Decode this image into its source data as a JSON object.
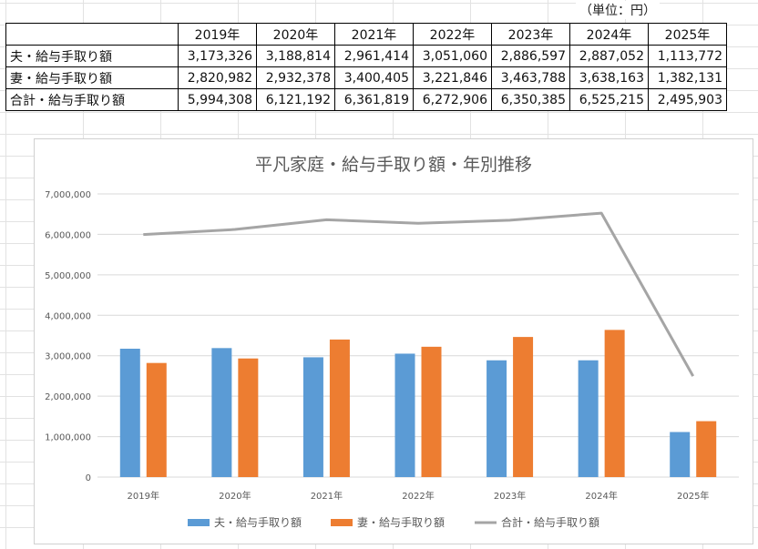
{
  "sheet": {
    "unit_label": "（単位：円）"
  },
  "table": {
    "years": [
      "2019年",
      "2020年",
      "2021年",
      "2022年",
      "2023年",
      "2024年",
      "2025年"
    ],
    "rows": [
      {
        "label": "夫・給与手取り額",
        "values": [
          "3,173,326",
          "3,188,814",
          "2,961,414",
          "3,051,060",
          "2,886,597",
          "2,887,052",
          "1,113,772"
        ]
      },
      {
        "label": "妻・給与手取り額",
        "values": [
          "2,820,982",
          "2,932,378",
          "3,400,405",
          "3,221,846",
          "3,463,788",
          "3,638,163",
          "1,382,131"
        ]
      },
      {
        "label": "合計・給与手取り額",
        "values": [
          "5,994,308",
          "6,121,192",
          "6,361,819",
          "6,272,906",
          "6,350,385",
          "6,525,215",
          "2,495,903"
        ]
      }
    ]
  },
  "chart_data": {
    "type": "bar",
    "title": "平凡家庭・給与手取り額・年別推移",
    "categories": [
      "2019年",
      "2020年",
      "2021年",
      "2022年",
      "2023年",
      "2024年",
      "2025年"
    ],
    "series": [
      {
        "name": "夫・給与手取り額",
        "kind": "bar",
        "color": "#5b9bd5",
        "values": [
          3173326,
          3188814,
          2961414,
          3051060,
          2886597,
          2887052,
          1113772
        ]
      },
      {
        "name": "妻・給与手取り額",
        "kind": "bar",
        "color": "#ed7d31",
        "values": [
          2820982,
          2932378,
          3400405,
          3221846,
          3463788,
          3638163,
          1382131
        ]
      },
      {
        "name": "合計・給与手取り額",
        "kind": "line",
        "color": "#a5a5a5",
        "values": [
          5994308,
          6121192,
          6361819,
          6272906,
          6350385,
          6525215,
          2495903
        ]
      }
    ],
    "ylim": [
      0,
      7000000
    ],
    "yticks": [
      0,
      1000000,
      2000000,
      3000000,
      4000000,
      5000000,
      6000000,
      7000000
    ],
    "ytick_labels": [
      "0",
      "1,000,000",
      "2,000,000",
      "3,000,000",
      "4,000,000",
      "5,000,000",
      "6,000,000",
      "7,000,000"
    ],
    "grid": true,
    "legend_position": "bottom",
    "xlabel": "",
    "ylabel": ""
  }
}
